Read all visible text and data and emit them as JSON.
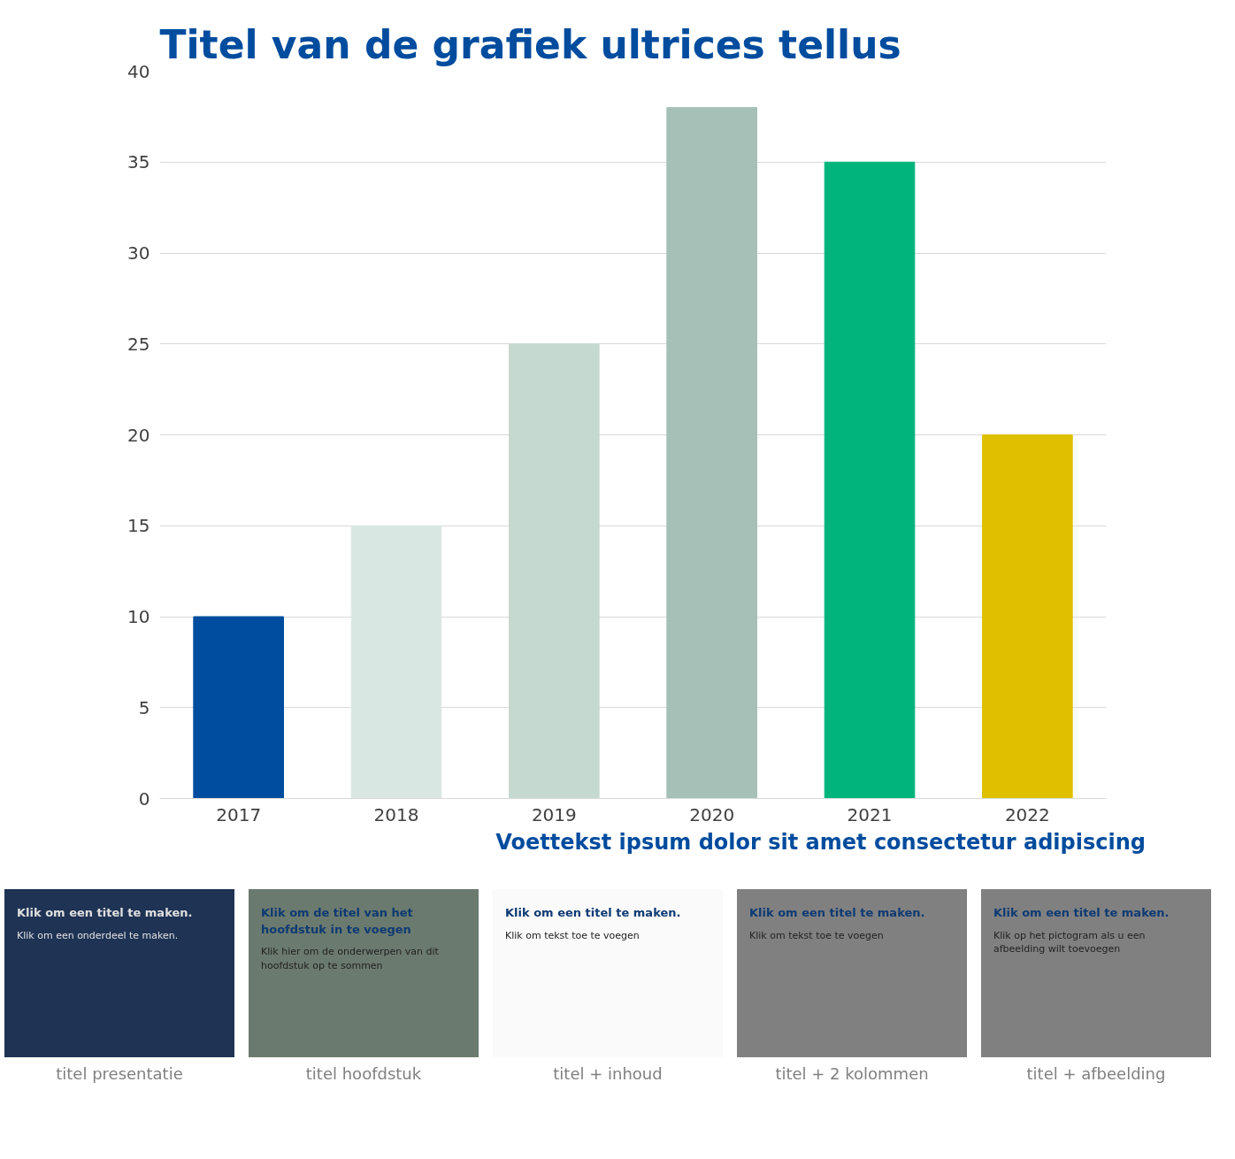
{
  "chart_data": {
    "type": "bar",
    "title": "Titel van de grafiek ultrices tellus",
    "categories": [
      "2017",
      "2018",
      "2019",
      "2020",
      "2021",
      "2022"
    ],
    "values": [
      10,
      15,
      25,
      38,
      35,
      20
    ],
    "colors": [
      "#004c9e",
      "#d9e7e3",
      "#c6d9d0",
      "#a6c0b7",
      "#00b47b",
      "#dfc000"
    ],
    "ylim": [
      0,
      40
    ],
    "yticks": [
      0,
      5,
      10,
      15,
      20,
      25,
      30,
      35,
      40
    ],
    "grid": "y",
    "annotations": [
      "Voettekst ipsum dolor sit amet consectetur adipiscing",
      "Klik om een titel te maken.",
      "Klik om een onderdeel te maken.",
      "titel presentatie",
      "Klik om de titel van het hoofdstuk in te voegen",
      "Klik hier om de onderwerpen van dit hoofdstuk op te sommen",
      "titel hoofdstuk",
      "Klik om een titel te maken.",
      "Klik om tekst toe te voegen",
      "titel + inhoud",
      "Klik om een titel te maken.",
      "Klik om tekst toe te voegen",
      "titel + 2 kolommen",
      "Klik om een titel te maken.",
      "Klik op het pictogram als u een afbeelding wilt toevoegen",
      "titel + afbeelding"
    ]
  }
}
